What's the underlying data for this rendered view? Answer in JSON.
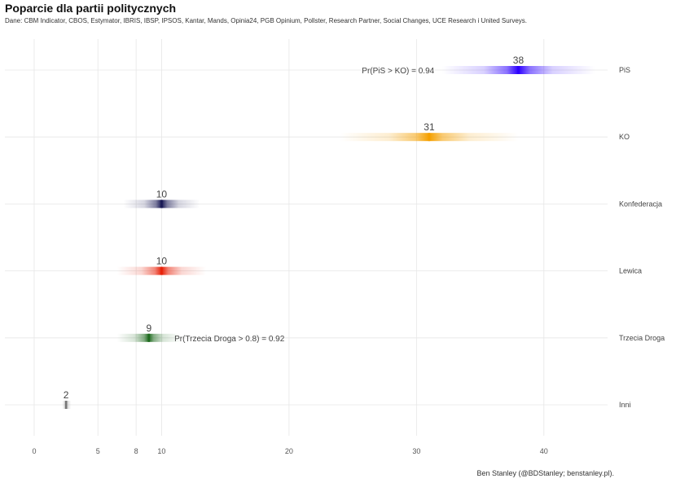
{
  "chart_data": {
    "type": "interval",
    "title": "Poparcie dla partii politycznych",
    "subtitle": "Dane: CBM Indicator, CBOS, Estymator, IBRIS, IBSP, IPSOS, Kantar, Mands, Opinia24, PGB Opinium, Pollster, Research Partner, Social Changes, UCE Research i United Surveys.",
    "caption": "Ben Stanley (@BDStanley; benstanley.pl).",
    "xlim": [
      -2.3,
      45
    ],
    "x_ticks": [
      0,
      5,
      8,
      10,
      20,
      30,
      40
    ],
    "parties": [
      {
        "name": "PiS",
        "value": 38,
        "label": "38",
        "low": 32,
        "high": 44,
        "color": "#2d00ff"
      },
      {
        "name": "KO",
        "value": 31,
        "label": "31",
        "low": 24,
        "high": 38,
        "color": "#f5a000"
      },
      {
        "name": "Konfederacja",
        "value": 10,
        "label": "10",
        "low": 7,
        "high": 13,
        "color": "#1a1a55"
      },
      {
        "name": "Lewica",
        "value": 10,
        "label": "10",
        "low": 6.5,
        "high": 13.5,
        "color": "#e8220a"
      },
      {
        "name": "Trzecia Droga",
        "value": 9,
        "label": "9",
        "low": 6.5,
        "high": 11.5,
        "color": "#1f6b1f"
      },
      {
        "name": "Inni",
        "value": 2.5,
        "label": "2",
        "low": 2.2,
        "high": 2.9,
        "color": "#777777"
      }
    ],
    "annotations": [
      {
        "text": "Pr(PiS > KO)  =  0.94",
        "x": 31.4,
        "anchor": "end",
        "party": "PiS"
      },
      {
        "text": "Pr(Trzecia Droga > 0.8)  =  0.92",
        "x": 11,
        "anchor": "start",
        "party": "Trzecia Droga"
      }
    ]
  }
}
